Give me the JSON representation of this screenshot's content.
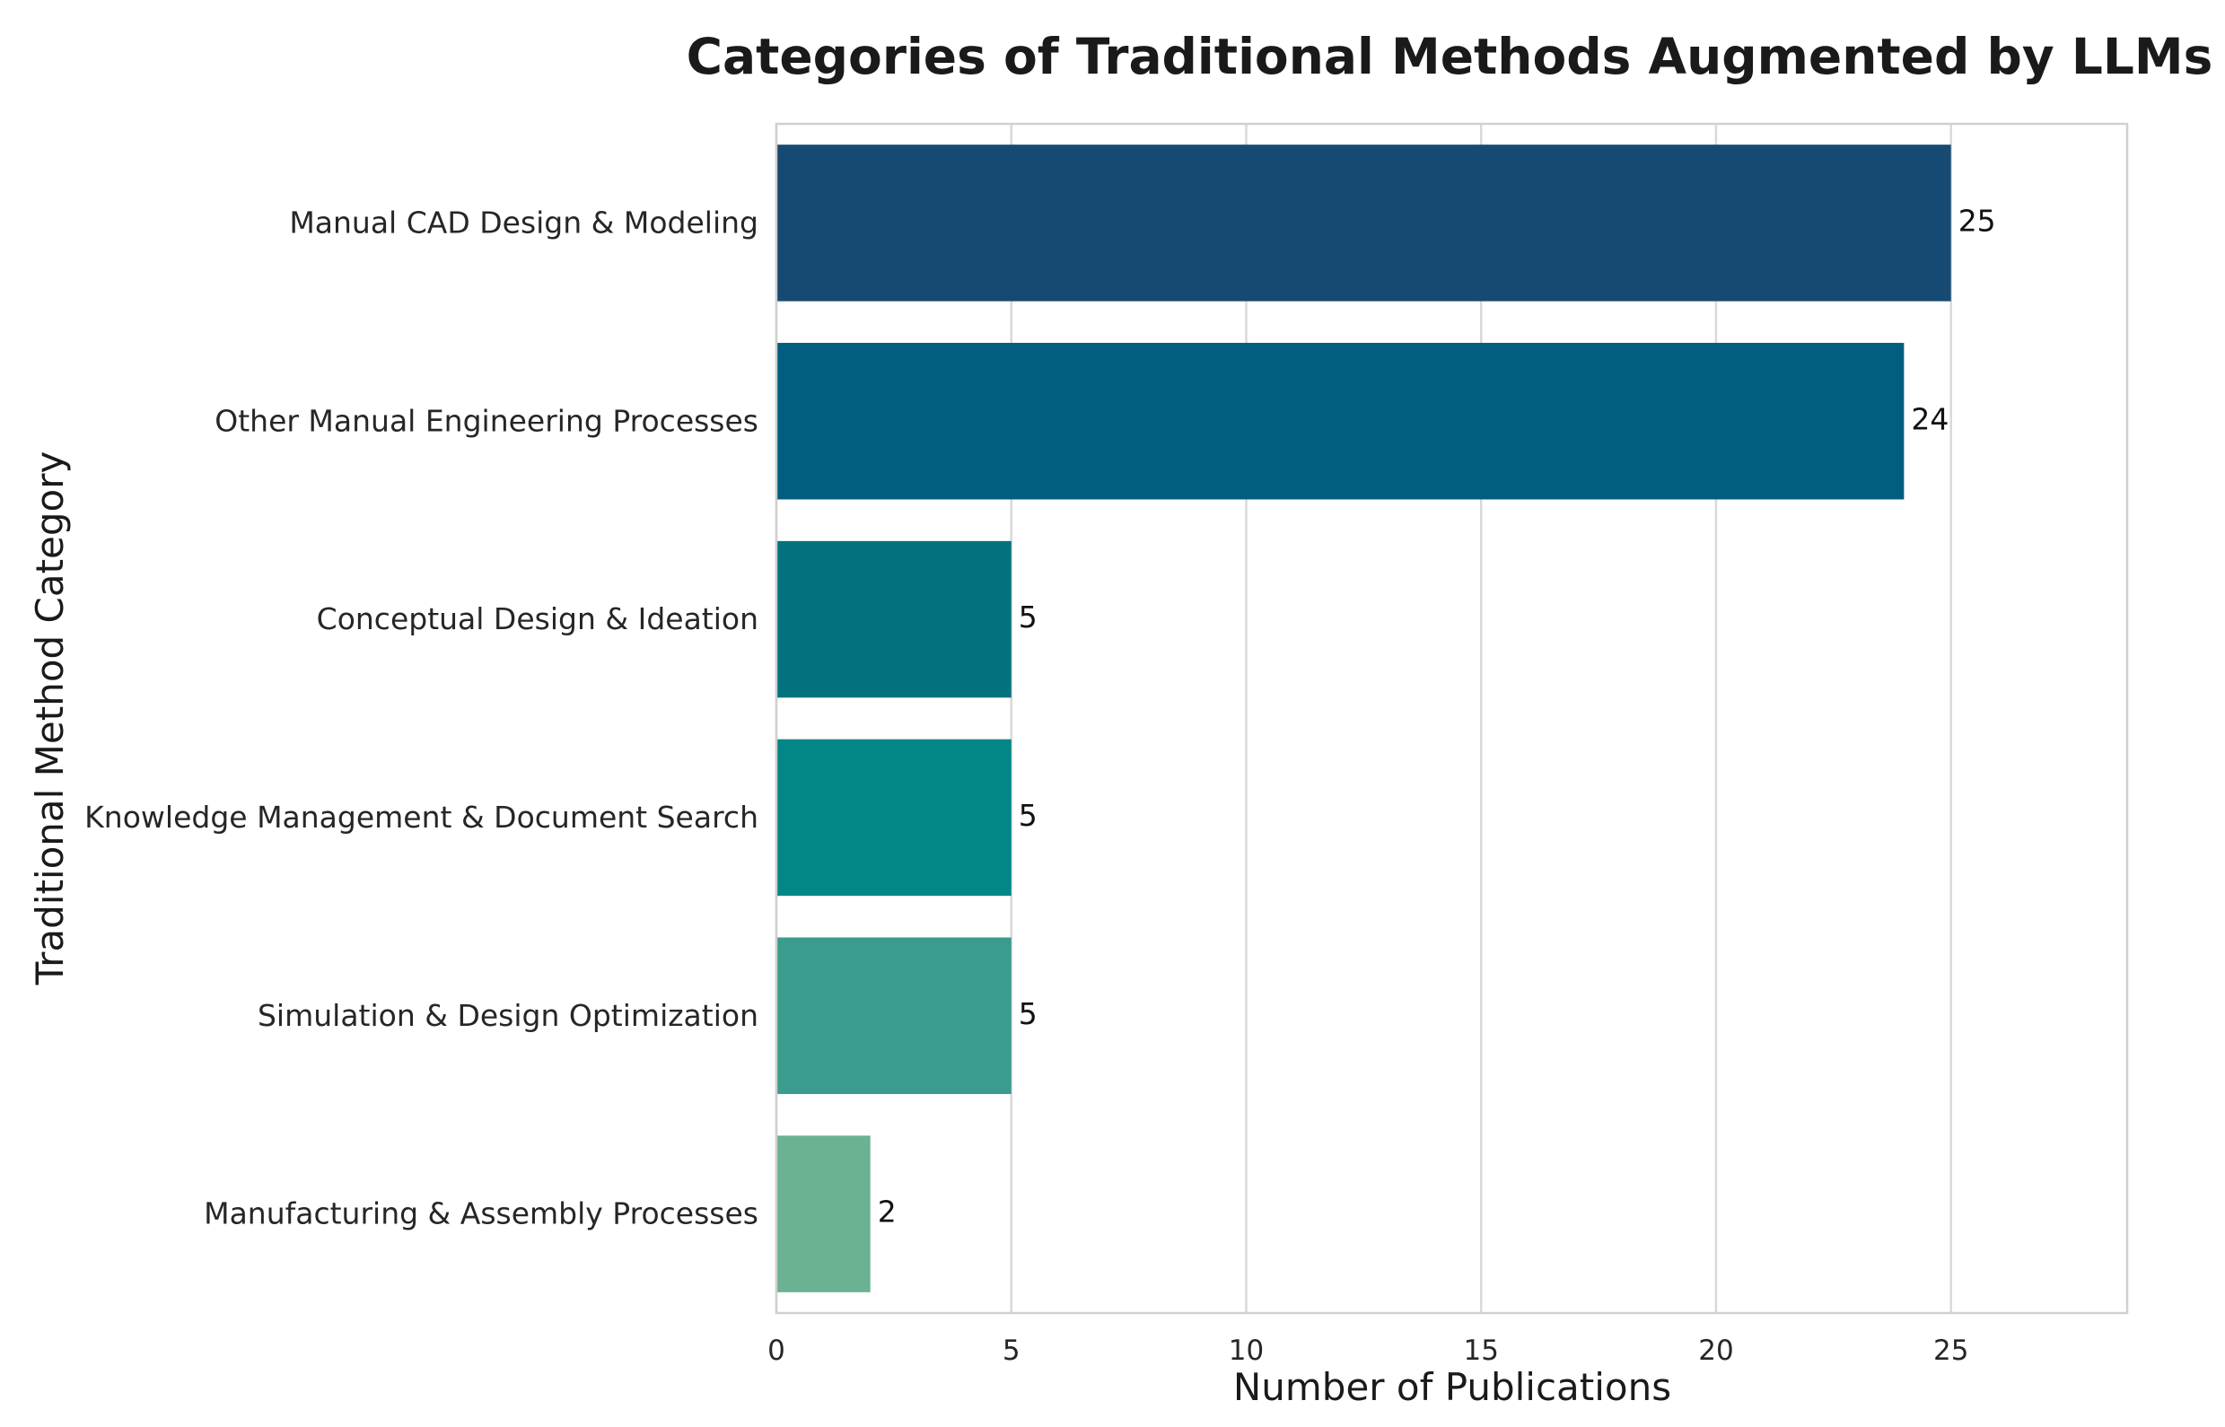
{
  "chart_data": {
    "type": "bar",
    "orientation": "horizontal",
    "title": "Categories of Traditional Methods Augmented by LLMs",
    "xlabel": "Number of Publications",
    "ylabel": "Traditional Method Category",
    "categories": [
      "Manual CAD Design & Modeling",
      "Other Manual Engineering Processes",
      "Conceptual Design & Ideation",
      "Knowledge Management & Document Search",
      "Simulation & Design Optimization",
      "Manufacturing & Assembly Processes"
    ],
    "values": [
      25,
      24,
      5,
      5,
      5,
      2
    ],
    "data_labels": [
      "25",
      "24",
      "5",
      "5",
      "5",
      "2"
    ],
    "colors": [
      "#174a72",
      "#025e7e",
      "#02727f",
      "#038786",
      "#3a9c8c",
      "#6ab291"
    ],
    "xlim": [
      0,
      28.75
    ],
    "xticks": [
      0,
      5,
      10,
      15,
      20,
      25
    ],
    "xtick_labels": [
      "0",
      "5",
      "10",
      "15",
      "20",
      "25"
    ],
    "grid": "vertical",
    "legend": "none"
  }
}
